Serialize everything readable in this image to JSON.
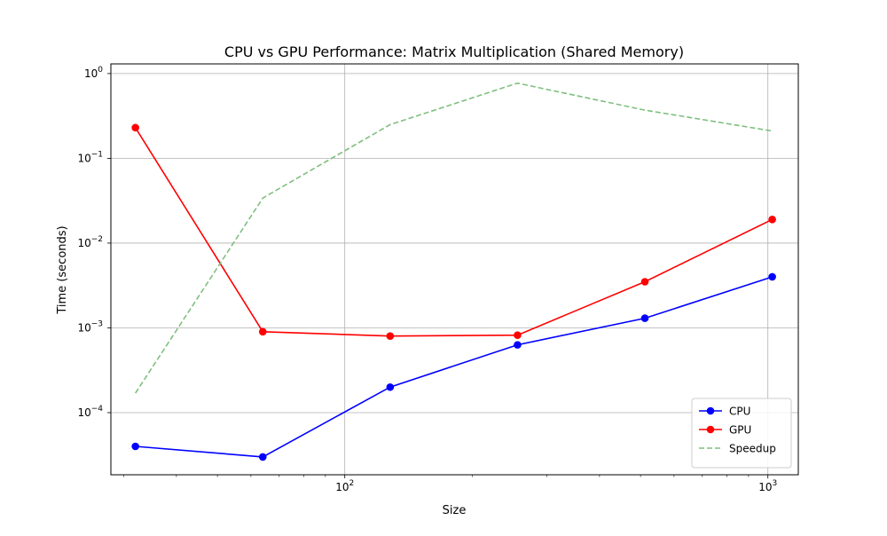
{
  "chart_data": {
    "type": "line",
    "title": "CPU vs GPU Performance: Matrix Multiplication (Shared Memory)",
    "xlabel": "Size",
    "ylabel": "Time (seconds)",
    "xscale": "log",
    "yscale": "log",
    "xlim": [
      28,
      1180
    ],
    "ylim": [
      1.85e-05,
      1.3
    ],
    "grid": true,
    "legend_position": "lower right",
    "x_ticks": [
      {
        "value": 100,
        "base": "10",
        "exp": "2"
      },
      {
        "value": 1000,
        "base": "10",
        "exp": "3"
      }
    ],
    "y_ticks": [
      {
        "value": 0.0001,
        "base": "10",
        "exp": "−4"
      },
      {
        "value": 0.001,
        "base": "10",
        "exp": "−3"
      },
      {
        "value": 0.01,
        "base": "10",
        "exp": "−2"
      },
      {
        "value": 0.1,
        "base": "10",
        "exp": "−1"
      },
      {
        "value": 1,
        "base": "10",
        "exp": "0"
      }
    ],
    "x": [
      32,
      64,
      128,
      256,
      512,
      1024
    ],
    "series": [
      {
        "name": "CPU",
        "color": "#0000ff",
        "style": "solid",
        "marker": "circle",
        "values": [
          4e-05,
          3e-05,
          0.0002,
          0.00063,
          0.0013,
          0.004
        ]
      },
      {
        "name": "GPU",
        "color": "#ff0000",
        "style": "solid",
        "marker": "circle",
        "values": [
          0.23,
          0.0009,
          0.0008,
          0.00082,
          0.0035,
          0.019
        ]
      },
      {
        "name": "Speedup",
        "color": "#7fbf7f",
        "style": "dashed",
        "marker": "none",
        "values": [
          0.00017,
          0.034,
          0.25,
          0.77,
          0.37,
          0.21
        ]
      }
    ]
  }
}
